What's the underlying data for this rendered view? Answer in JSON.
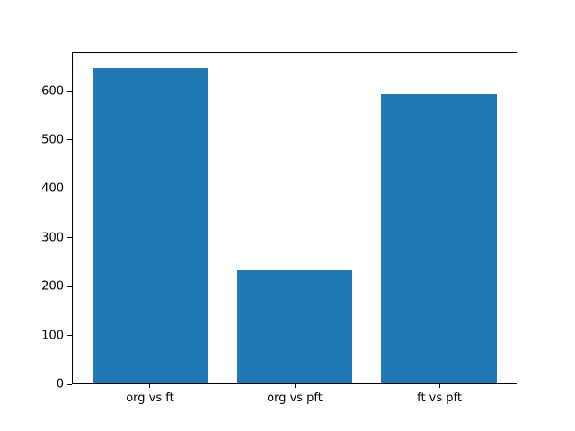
{
  "chart_data": {
    "type": "bar",
    "categories": [
      "org vs ft",
      "org vs pft",
      "ft vs pft"
    ],
    "values": [
      648,
      232,
      595
    ],
    "title": "",
    "xlabel": "",
    "ylabel": "",
    "ylim": [
      0,
      680
    ],
    "xlim": [
      -0.54,
      2.54
    ],
    "yticks": [
      0,
      100,
      200,
      300,
      400,
      500,
      600
    ],
    "bar_color": "#1f77b4",
    "bar_width_fraction": 0.8,
    "axis_color": "#000000",
    "background_color": "#ffffff",
    "grid": false,
    "legend": null
  }
}
